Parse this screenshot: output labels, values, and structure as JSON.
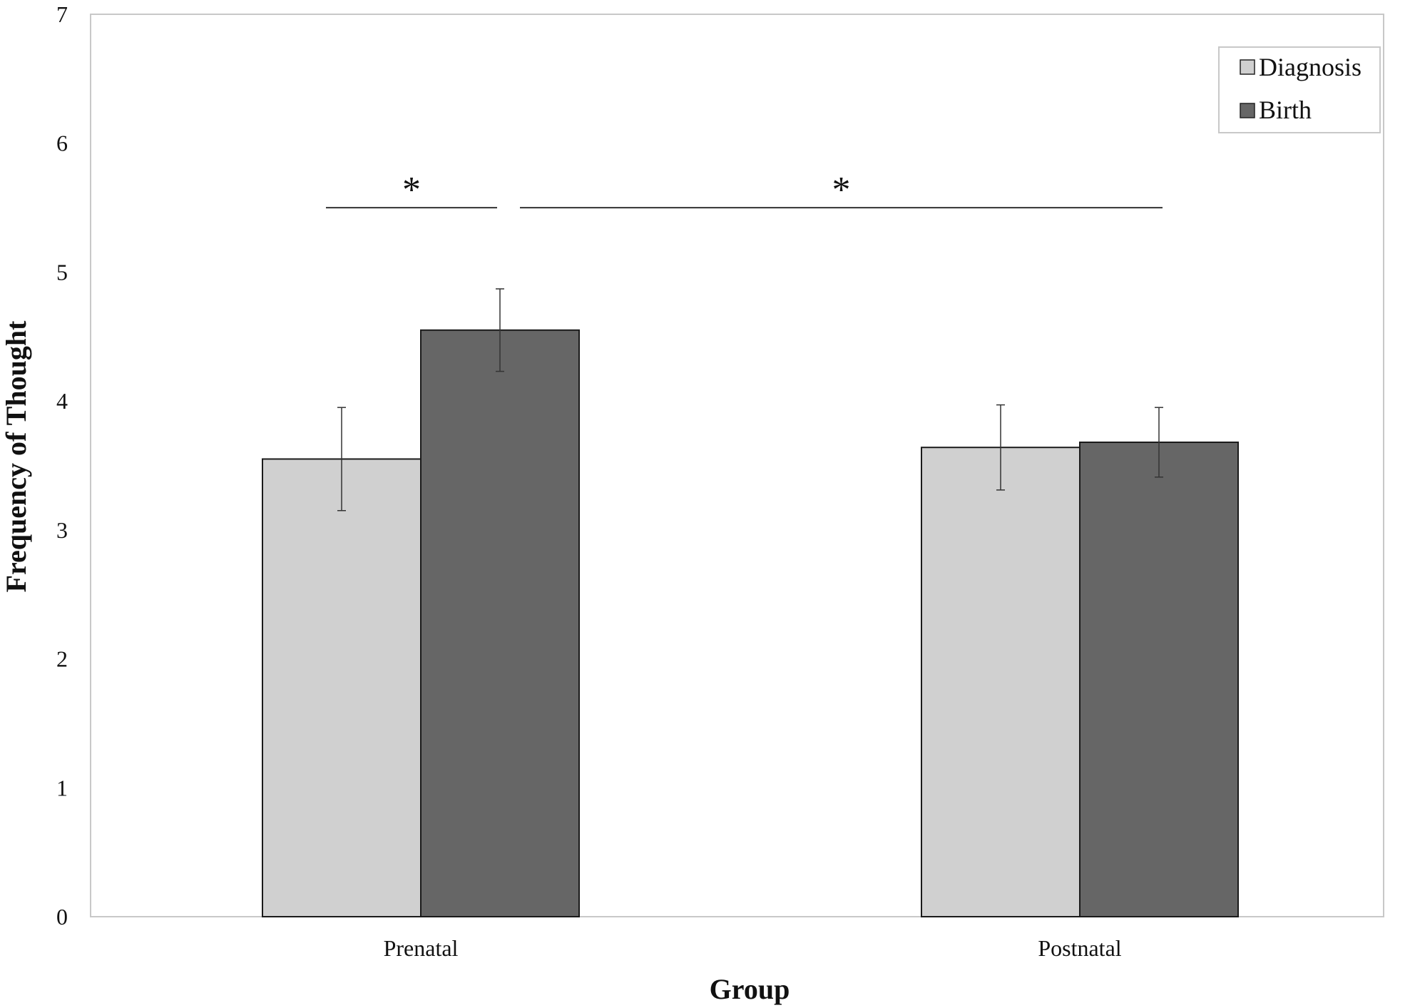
{
  "chart_data": {
    "type": "bar",
    "title": "",
    "xlabel": "Group",
    "ylabel": "Frequency of Thought",
    "ylim": [
      0,
      7
    ],
    "yticks": [
      0,
      1,
      2,
      3,
      4,
      5,
      6,
      7
    ],
    "categories": [
      "Prenatal",
      "Postnatal"
    ],
    "series": [
      {
        "name": "Diagnosis",
        "color": "#d0d0d0",
        "values": [
          3.55,
          3.64
        ],
        "error": [
          0.4,
          0.33
        ]
      },
      {
        "name": "Birth",
        "color": "#666666",
        "values": [
          4.55,
          3.68
        ],
        "error": [
          0.32,
          0.27
        ]
      }
    ],
    "legend_position": "top-right",
    "grid": false,
    "significance": [
      {
        "label": "*",
        "from": "Prenatal Diagnosis",
        "to": "Prenatal Birth",
        "y": 5.5
      },
      {
        "label": "*",
        "from": "Prenatal Birth",
        "to": "Postnatal Birth",
        "y": 5.5
      }
    ]
  }
}
